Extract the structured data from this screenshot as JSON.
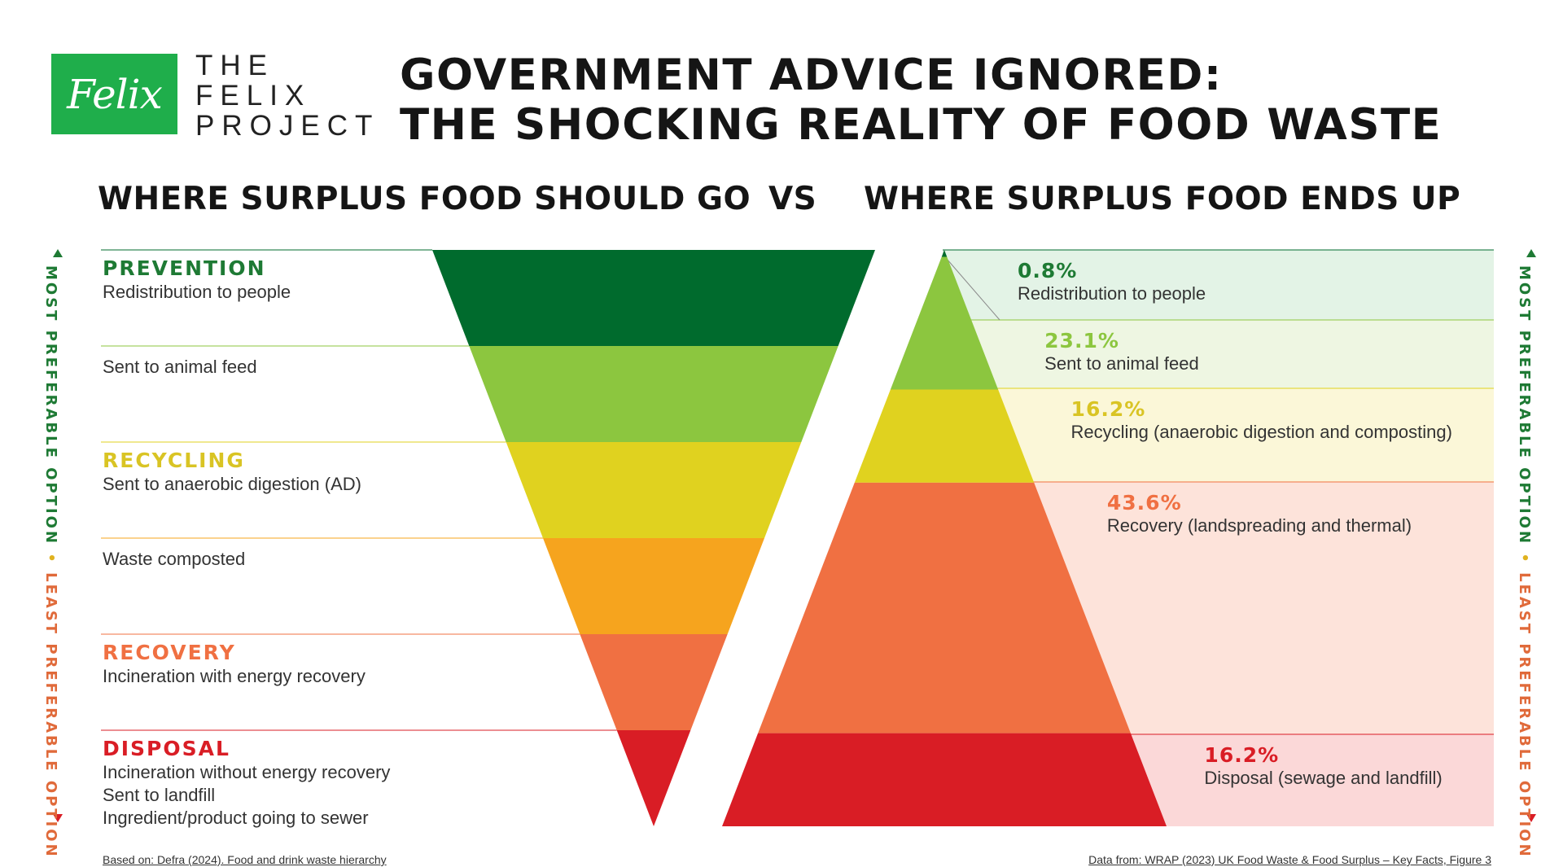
{
  "logo": {
    "script": "Felix",
    "lines": [
      "THE",
      "FELIX",
      "PROJECT"
    ]
  },
  "title": {
    "line1": "GOVERNMENT ADVICE IGNORED:",
    "line2": "THE SHOCKING REALITY OF FOOD WASTE"
  },
  "subheads": {
    "left": "WHERE SURPLUS FOOD SHOULD GO",
    "vs": "VS",
    "right": "WHERE SURPLUS FOOD ENDS UP"
  },
  "side_axis": {
    "most": "MOST PREFERABLE OPTION",
    "dot": "•",
    "least": "LEAST PREFERABLE OPTION"
  },
  "hierarchy": {
    "tiers": [
      {
        "category": "PREVENTION",
        "lines": [
          "Redistribution to people"
        ],
        "color": "#006b2d"
      },
      {
        "category": "",
        "lines": [
          "Sent to animal feed"
        ],
        "color": "#8cc63f"
      },
      {
        "category": "RECYCLING",
        "lines": [
          "Sent to anaerobic digestion (AD)"
        ],
        "color": "#e0d21f"
      },
      {
        "category": "",
        "lines": [
          "Waste composted"
        ],
        "color": "#f6a41e"
      },
      {
        "category": "RECOVERY",
        "lines": [
          "Incineration with energy recovery"
        ],
        "color": "#f07042"
      },
      {
        "category": "DISPOSAL",
        "lines": [
          "Incineration without energy recovery",
          "Sent to landfill",
          "Ingredient/product going to sewer"
        ],
        "color": "#d91d25"
      }
    ],
    "category_colors": {
      "PREVENTION": "#1e7a34",
      "RECYCLING": "#d9c424",
      "RECOVERY": "#f07042",
      "DISPOSAL": "#d91d25"
    }
  },
  "chart_data": {
    "type": "pyramid",
    "unit": "%",
    "items": [
      {
        "pct": "0.8%",
        "value": 0.8,
        "label": "Redistribution to people",
        "color": "#006b2d",
        "pct_color": "#1e7a34"
      },
      {
        "pct": "23.1%",
        "value": 23.1,
        "label": "Sent to animal feed",
        "color": "#8cc63f",
        "pct_color": "#8cc63f"
      },
      {
        "pct": "16.2%",
        "value": 16.2,
        "label": "Recycling (anaerobic digestion and composting)",
        "color": "#e0d21f",
        "pct_color": "#d9c424"
      },
      {
        "pct": "43.6%",
        "value": 43.6,
        "label": "Recovery (landspreading and thermal)",
        "color": "#f07042",
        "pct_color": "#f07042"
      },
      {
        "pct": "16.2%",
        "value": 16.2,
        "label": "Disposal (sewage and landfill)",
        "color": "#d91d25",
        "pct_color": "#d91d25"
      }
    ],
    "band_tints": [
      "#e3f3e6",
      "#eef6e2",
      "#fbf7d8",
      "#fde3da",
      "#fbd8d8"
    ]
  },
  "footnotes": {
    "left": "Based on: Defra (2024). Food and drink waste hierarchy",
    "right": "Data from: WRAP (2023) UK Food Waste & Food Surplus – Key Facts, Figure 3"
  }
}
